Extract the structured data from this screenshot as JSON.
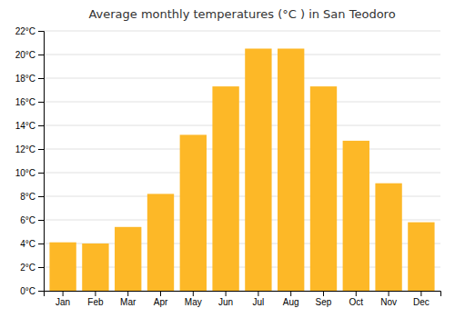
{
  "chart_data": {
    "type": "bar",
    "title": "Average monthly temperatures (°C ) in San Teodoro",
    "categories": [
      "Jan",
      "Feb",
      "Mar",
      "Apr",
      "May",
      "Jun",
      "Jul",
      "Aug",
      "Sep",
      "Oct",
      "Nov",
      "Dec"
    ],
    "values": [
      4.1,
      4.0,
      5.4,
      8.2,
      13.2,
      17.3,
      20.5,
      20.5,
      17.3,
      12.7,
      9.1,
      5.8
    ],
    "color": "#FDB827",
    "ylim": [
      0,
      22
    ],
    "yticks": [
      {
        "value": 0,
        "label": "0°C"
      },
      {
        "value": 2,
        "label": "2°C"
      },
      {
        "value": 4,
        "label": "4°C"
      },
      {
        "value": 6,
        "label": "6°C"
      },
      {
        "value": 8,
        "label": "8°C"
      },
      {
        "value": 10,
        "label": "10°C"
      },
      {
        "value": 12,
        "label": "12°C"
      },
      {
        "value": 14,
        "label": "14°C"
      },
      {
        "value": 16,
        "label": "16°C"
      },
      {
        "value": 18,
        "label": "18°C"
      },
      {
        "value": 20,
        "label": "20°C"
      },
      {
        "value": 22,
        "label": "22°C"
      }
    ],
    "grid": true
  }
}
